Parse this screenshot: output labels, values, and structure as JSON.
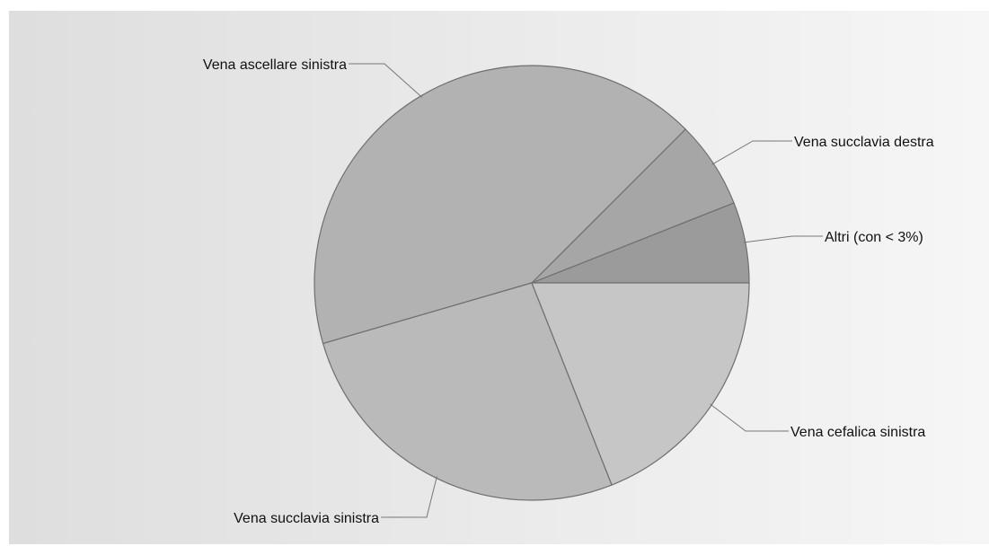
{
  "chart_data": {
    "type": "pie",
    "title": "",
    "start_angle_deg": 0,
    "direction": "counterclockwise",
    "slices": [
      {
        "label": "Altri (con < 3%)",
        "value": 6.0,
        "color": "#9b9b9b"
      },
      {
        "label": "Vena succlavia destra",
        "value": 6.5,
        "color": "#a6a6a6"
      },
      {
        "label": "Vena ascellare sinistra",
        "value": 42.0,
        "color": "#b2b2b2"
      },
      {
        "label": "Vena succlavia sinistra",
        "value": 26.5,
        "color": "#bababa"
      },
      {
        "label": "Vena cefalica sinistra",
        "value": 19.0,
        "color": "#c6c6c6"
      }
    ],
    "legend": "none",
    "grid": false
  },
  "background": {
    "gradient_start": "#dedede",
    "gradient_end": "#f6f6f6"
  }
}
